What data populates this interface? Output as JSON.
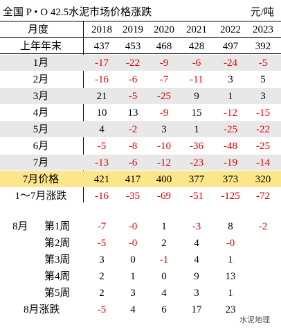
{
  "title": "全国 P • O 42.5水泥市场价格涨跌",
  "unit": "元/吨",
  "header": {
    "label": "月度",
    "years": [
      "2018",
      "2019",
      "2020",
      "2021",
      "2022",
      "2023"
    ]
  },
  "rows": [
    {
      "label": "上年年末",
      "values": [
        437,
        453,
        468,
        428,
        497,
        392
      ]
    },
    {
      "label": "1月",
      "values": [
        -17,
        -22,
        -9,
        -6,
        -24,
        -5
      ]
    },
    {
      "label": "2月",
      "values": [
        -16,
        -6,
        -7,
        -11,
        3,
        5
      ]
    },
    {
      "label": "3月",
      "values": [
        21,
        -5,
        -25,
        9,
        1,
        3
      ]
    },
    {
      "label": "4月",
      "values": [
        10,
        13,
        -9,
        15,
        -12,
        -15
      ]
    },
    {
      "label": "5月",
      "values": [
        4,
        -2,
        3,
        1,
        -25,
        -22
      ]
    },
    {
      "label": "6月",
      "values": [
        -5,
        -8,
        -10,
        -36,
        -48,
        -25
      ]
    },
    {
      "label": "7月",
      "values": [
        -13,
        -6,
        -12,
        -23,
        -19,
        -14
      ]
    },
    {
      "label": "7月价格",
      "values": [
        421,
        417,
        400,
        377,
        373,
        320
      ]
    },
    {
      "label": "1～7月涨跌",
      "values": [
        -16,
        -35,
        -69,
        -51,
        -125,
        -72
      ]
    }
  ],
  "week_rows": [
    {
      "group": "8月",
      "label": "第1周",
      "values": [
        -7,
        "-0",
        1,
        -3,
        8,
        -2
      ]
    },
    {
      "label": "第2周",
      "values": [
        -5,
        "-0",
        2,
        4,
        "-0"
      ]
    },
    {
      "label": "第3周",
      "values": [
        3,
        0,
        -1,
        4,
        1
      ]
    },
    {
      "label": "第4周",
      "values": [
        2,
        1,
        0,
        9,
        13
      ]
    },
    {
      "label": "第5周",
      "values": [
        2,
        3,
        4,
        3,
        1
      ]
    },
    {
      "label": "8月涨跌",
      "values": [
        -5,
        4,
        6,
        17,
        23
      ]
    }
  ],
  "watermark": "水泥地理"
}
